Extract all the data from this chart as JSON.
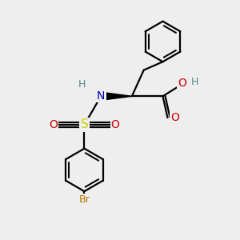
{
  "background_color": "#eeeeee",
  "bond_color": "#000000",
  "atom_colors": {
    "N": "#0000bb",
    "O": "#cc0000",
    "S": "#cccc00",
    "Br": "#bb7700",
    "H": "#558888",
    "C": "#000000"
  },
  "figsize": [
    3.0,
    3.0
  ],
  "dpi": 100
}
